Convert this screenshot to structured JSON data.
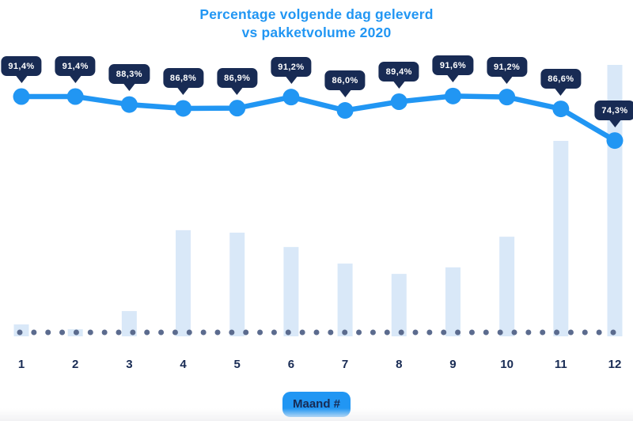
{
  "title": {
    "line1": "Percentage volgende dag geleverd",
    "line2": "vs pakketvolume 2020"
  },
  "x_axis": {
    "title": "Maand #",
    "labels": [
      "1",
      "2",
      "3",
      "4",
      "5",
      "6",
      "7",
      "8",
      "9",
      "10",
      "11",
      "12"
    ]
  },
  "chart_data": {
    "type": "line+bar",
    "title": "Percentage volgende dag geleverd vs pakketvolume 2020",
    "x": [
      1,
      2,
      3,
      4,
      5,
      6,
      7,
      8,
      9,
      10,
      11,
      12
    ],
    "xlabel": "Maand #",
    "legend": "none",
    "grid": "dotted-baseline",
    "series": [
      {
        "name": "percentage volgende dag geleverd",
        "type": "line",
        "unit": "%",
        "values": [
          91.4,
          91.4,
          88.3,
          86.8,
          86.9,
          91.2,
          86.0,
          89.4,
          91.6,
          91.2,
          86.6,
          74.3
        ],
        "labels": [
          "91,4%",
          "91,4%",
          "88,3%",
          "86,8%",
          "86,9%",
          "91,2%",
          "86,0%",
          "89,4%",
          "91,6%",
          "91,2%",
          "86,6%",
          "74,3%"
        ]
      },
      {
        "name": "pakketvolume 2020",
        "type": "bar",
        "unit": "relative (max month = 100)",
        "values": [
          4.4,
          2.6,
          9.3,
          39.1,
          38.2,
          32.9,
          26.8,
          23.0,
          25.4,
          36.7,
          72.0,
          100
        ]
      }
    ]
  },
  "colors": {
    "accent_blue": "#2196f3",
    "navy": "#182b54",
    "bar_fill": "#d9e8f8",
    "dot_gray": "#5b6b8e",
    "background": "#ffffff"
  }
}
